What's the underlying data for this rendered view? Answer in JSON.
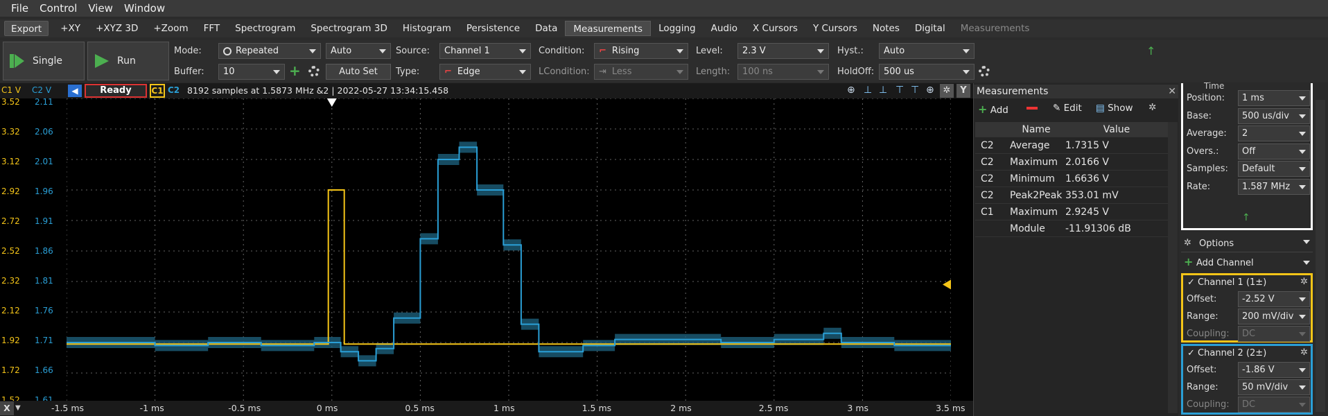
{
  "menu": [
    "File",
    "Control",
    "View",
    "Window"
  ],
  "tabs": [
    "Export",
    "+XY",
    "+XYZ 3D",
    "+Zoom",
    "FFT",
    "Spectrogram",
    "Spectrogram 3D",
    "Histogram",
    "Persistence",
    "Data",
    "Measurements",
    "Logging",
    "Audio",
    "X Cursors",
    "Y Cursors",
    "Notes",
    "Digital",
    "Measurements"
  ],
  "active_tab": "Measurements",
  "toolbar": {
    "single": "Single",
    "run": "Run",
    "mode_label": "Mode:",
    "mode": "Repeated",
    "mode_auto": "Auto",
    "buffer_label": "Buffer:",
    "buffer": "10",
    "autoset": "Auto Set",
    "source_label": "Source:",
    "source": "Channel 1",
    "type_label": "Type:",
    "type": "Edge",
    "condition_label": "Condition:",
    "condition": "Rising",
    "lcondition_label": "LCondition:",
    "lcondition": "Less",
    "level_label": "Level:",
    "level": "2.3 V",
    "length_label": "Length:",
    "length": "100 ns",
    "hyst_label": "Hyst.:",
    "hyst": "Auto",
    "holdoff_label": "HoldOff:",
    "holdoff": "500 us"
  },
  "scope": {
    "c1_label": "C1 V",
    "c2_label": "C2 V",
    "status": "Ready",
    "ch1": "C1",
    "ch2": "C2",
    "info": "8192 samples at 1.5873 MHz &2 | 2022-05-27 13:34:15.458",
    "c1_ticks": [
      "3.52",
      "3.32",
      "3.12",
      "2.92",
      "2.72",
      "2.52",
      "2.32",
      "2.12",
      "1.92",
      "1.72",
      "1.52"
    ],
    "c2_ticks": [
      "2.11",
      "2.06",
      "2.01",
      "1.96",
      "1.91",
      "1.86",
      "1.81",
      "1.76",
      "1.71",
      "1.66",
      "1.61"
    ],
    "x_ticks": [
      "-1.5 ms",
      "-1 ms",
      "-0.5 ms",
      "0 ms",
      "0.5 ms",
      "1 ms",
      "1.5 ms",
      "2 ms",
      "2.5 ms",
      "3 ms",
      "3.5 ms"
    ],
    "colors": {
      "c1": "#f5c518",
      "c2": "#2a9fd6",
      "c2_band": "#1d5f7a"
    }
  },
  "chart_data": {
    "type": "line",
    "xlabel": "",
    "ylabel": "",
    "xlim": [
      -1.5,
      3.5
    ],
    "ylim_c1": [
      1.52,
      3.52
    ],
    "ylim_c2": [
      1.61,
      2.11
    ],
    "series": [
      {
        "name": "C1",
        "x": [
          -1.5,
          -0.02,
          -0.02,
          0.07,
          0.07,
          3.5
        ],
        "y": [
          1.91,
          1.91,
          2.92,
          2.92,
          1.91,
          1.91
        ]
      },
      {
        "name": "C2",
        "x": [
          -1.5,
          -1.0,
          -1.0,
          -0.7,
          -0.7,
          -0.4,
          -0.4,
          -0.1,
          -0.1,
          0.05,
          0.05,
          0.15,
          0.15,
          0.25,
          0.25,
          0.35,
          0.35,
          0.5,
          0.5,
          0.6,
          0.6,
          0.72,
          0.72,
          0.82,
          0.82,
          0.97,
          0.97,
          1.07,
          1.07,
          1.17,
          1.17,
          1.42,
          1.42,
          1.6,
          1.6,
          2.2,
          2.2,
          2.5,
          2.5,
          2.78,
          2.78,
          2.88,
          2.88,
          3.18,
          3.18,
          3.5
        ],
        "y": [
          1.71,
          1.71,
          1.705,
          1.705,
          1.71,
          1.71,
          1.705,
          1.705,
          1.71,
          1.71,
          1.695,
          1.695,
          1.68,
          1.68,
          1.7,
          1.7,
          1.75,
          1.75,
          1.88,
          1.88,
          2.01,
          2.01,
          2.03,
          2.03,
          1.96,
          1.96,
          1.87,
          1.87,
          1.74,
          1.74,
          1.695,
          1.695,
          1.705,
          1.705,
          1.715,
          1.715,
          1.71,
          1.71,
          1.715,
          1.715,
          1.725,
          1.725,
          1.71,
          1.71,
          1.705,
          1.705
        ]
      }
    ],
    "grid": true
  },
  "measurements": {
    "title": "Measurements",
    "add": "Add",
    "edit": "Edit",
    "show": "Show",
    "headers": [
      "",
      "Name",
      "Value"
    ],
    "rows": [
      [
        "C2",
        "Average",
        "1.7315 V"
      ],
      [
        "C2",
        "Maximum",
        "2.0166 V"
      ],
      [
        "C2",
        "Minimum",
        "1.6636 V"
      ],
      [
        "C2",
        "Peak2Peak",
        "353.01 mV"
      ],
      [
        "C1",
        "Maximum",
        "2.9245 V"
      ],
      [
        "",
        "Module",
        "-11.91306 dB"
      ]
    ]
  },
  "time": {
    "title": "Time",
    "rows": [
      [
        "Position:",
        "1 ms"
      ],
      [
        "Base:",
        "500 us/div"
      ],
      [
        "Average:",
        "2"
      ],
      [
        "Overs.:",
        "Off"
      ],
      [
        "Samples:",
        "Default"
      ],
      [
        "Rate:",
        "1.587 MHz"
      ]
    ]
  },
  "options": {
    "label": "Options",
    "add_channel": "Add Channel"
  },
  "channel1": {
    "title": "Channel 1 (1±)",
    "offset_label": "Offset:",
    "offset": "-2.52 V",
    "range_label": "Range:",
    "range": "200 mV/div",
    "coupling_label": "Coupling:",
    "coupling": "DC"
  },
  "channel2": {
    "title": "Channel 2 (2±)",
    "offset_label": "Offset:",
    "offset": "-1.86 V",
    "range_label": "Range:",
    "range": "50 mV/div",
    "coupling_label": "Coupling:",
    "coupling": "DC"
  },
  "footer": {
    "x": "X",
    "y": "Y"
  }
}
